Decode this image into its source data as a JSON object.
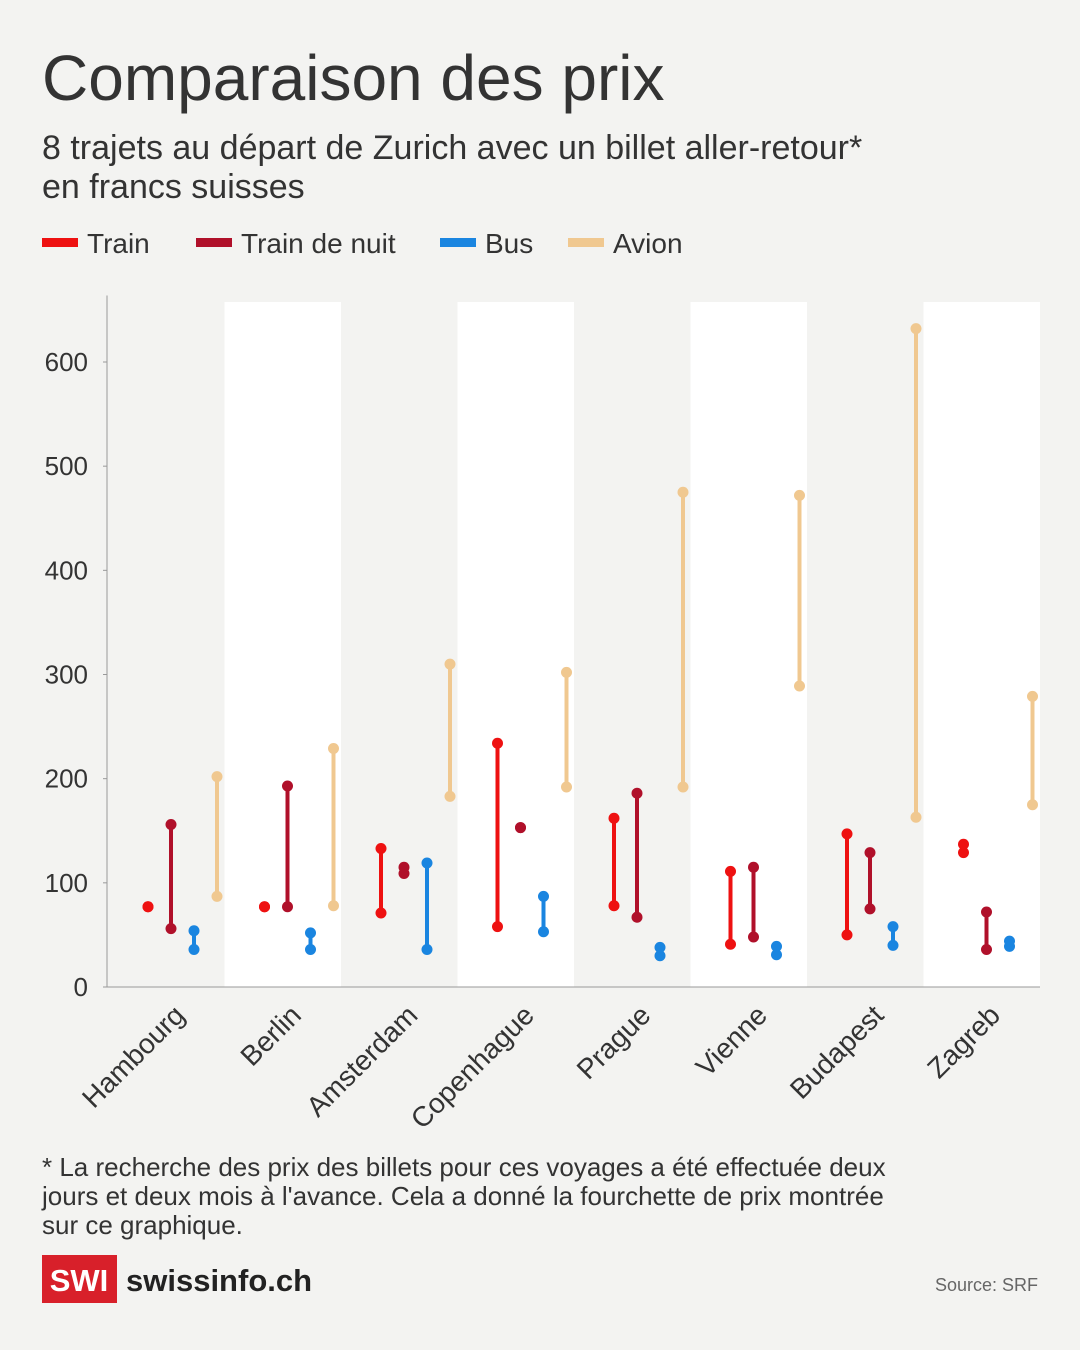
{
  "chart_data": {
    "type": "range",
    "title": "Comparaison des prix",
    "subtitle": [
      "8 trajets au départ de Zurich avec un billet aller-retour*",
      "en francs suisses"
    ],
    "categories": [
      "Hambourg",
      "Berlin",
      "Amsterdam",
      "Copenhague",
      "Prague",
      "Vienne",
      "Budapest",
      "Zagreb"
    ],
    "series": [
      {
        "name": "Train",
        "color": "#ee1111",
        "low": [
          77,
          77,
          71,
          58,
          78,
          41,
          50,
          129
        ],
        "high": [
          77,
          77,
          133,
          234,
          162,
          111,
          147,
          137
        ]
      },
      {
        "name": "Train de nuit",
        "color": "#b0102a",
        "low": [
          56,
          77,
          109,
          153,
          67,
          48,
          75,
          36
        ],
        "high": [
          156,
          193,
          115,
          153,
          186,
          115,
          129,
          72
        ]
      },
      {
        "name": "Bus",
        "color": "#1a85e0",
        "low": [
          36,
          36,
          36,
          53,
          30,
          31,
          40,
          39
        ],
        "high": [
          54,
          52,
          119,
          87,
          38,
          39,
          58,
          44
        ]
      },
      {
        "name": "Avion",
        "color": "#f0c890",
        "low": [
          87,
          78,
          183,
          192,
          192,
          289,
          163,
          175
        ],
        "high": [
          202,
          229,
          310,
          302,
          475,
          472,
          632,
          279
        ]
      }
    ],
    "ylim": [
      0,
      660
    ],
    "yticks": [
      0,
      100,
      200,
      300,
      400,
      500,
      600
    ],
    "footnote": [
      "* La recherche des prix des billets pour ces voyages a été effectuée deux",
      "jours et deux mois à l'avance. Cela a donné la fourchette de prix montrée",
      "sur ce graphique."
    ],
    "logo": "SWI",
    "brand": "swissinfo.ch",
    "source": "Source: SRF"
  }
}
